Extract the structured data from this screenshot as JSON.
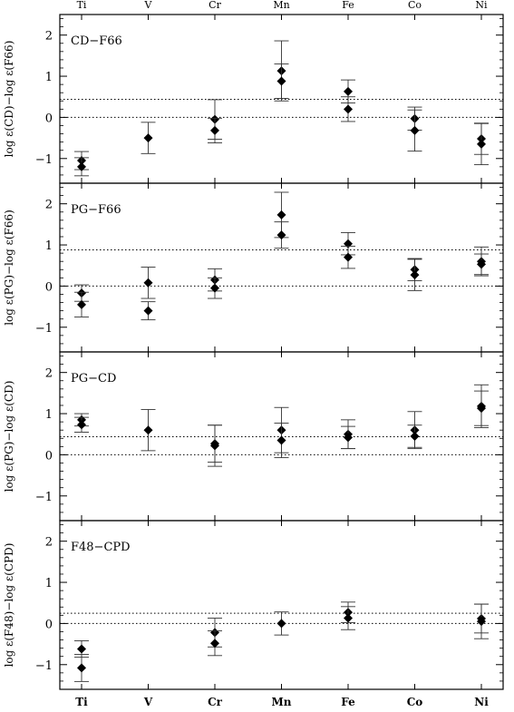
{
  "chart_data": {
    "type": "scatter",
    "categories": [
      "Ti",
      "V",
      "Cr",
      "Mn",
      "Fe",
      "Co",
      "Ni"
    ],
    "top_category_labels": [
      "Ti",
      "V",
      "Cr",
      "Mn",
      "Fe",
      "Co",
      "Ni"
    ],
    "bottom_category_labels": [
      "Ti",
      "V",
      "Cr",
      "Mn",
      "Fe",
      "Co",
      "Ni"
    ],
    "ylim": [
      -1.6,
      2.5
    ],
    "yticks": [
      2,
      1,
      0,
      -1
    ],
    "ytick_labels": [
      "2",
      "1",
      "0",
      "−1"
    ],
    "grid": false,
    "panels": [
      {
        "label": "CD−F66",
        "ylabel": "log ε(CD)−log ε(F66)",
        "reference_lines": [
          0,
          0.44
        ],
        "points": [
          {
            "element": "Ti",
            "y": -1.05,
            "err": 0.22
          },
          {
            "element": "Ti",
            "y": -1.2,
            "err": 0.22
          },
          {
            "element": "V",
            "y": -0.5,
            "err": 0.38
          },
          {
            "element": "Cr",
            "y": -0.05,
            "err": 0.48
          },
          {
            "element": "Cr",
            "y": -0.32,
            "err": 0.3
          },
          {
            "element": "Mn",
            "y": 1.13,
            "err": 0.73
          },
          {
            "element": "Mn",
            "y": 0.88,
            "err": 0.42
          },
          {
            "element": "Fe",
            "y": 0.63,
            "err": 0.28
          },
          {
            "element": "Fe",
            "y": 0.2,
            "err": 0.3
          },
          {
            "element": "Co",
            "y": -0.03,
            "err": 0.28
          },
          {
            "element": "Co",
            "y": -0.32,
            "err": 0.5
          },
          {
            "element": "Ni",
            "y": -0.52,
            "err": 0.38
          },
          {
            "element": "Ni",
            "y": -0.65,
            "err": 0.5
          }
        ]
      },
      {
        "label": "PG−F66",
        "ylabel": "log ε(PG)−log ε(F66)",
        "reference_lines": [
          0,
          0.88
        ],
        "points": [
          {
            "element": "Ti",
            "y": -0.17,
            "err": 0.2
          },
          {
            "element": "Ti",
            "y": -0.45,
            "err": 0.3
          },
          {
            "element": "V",
            "y": 0.08,
            "err": 0.38
          },
          {
            "element": "V",
            "y": -0.6,
            "err": 0.22
          },
          {
            "element": "Cr",
            "y": 0.15,
            "err": 0.27
          },
          {
            "element": "Cr",
            "y": -0.05,
            "err": 0.25
          },
          {
            "element": "Mn",
            "y": 1.73,
            "err": 0.55
          },
          {
            "element": "Mn",
            "y": 1.24,
            "err": 0.32
          },
          {
            "element": "Fe",
            "y": 1.03,
            "err": 0.27
          },
          {
            "element": "Fe",
            "y": 0.7,
            "err": 0.27
          },
          {
            "element": "Co",
            "y": 0.4,
            "err": 0.27
          },
          {
            "element": "Co",
            "y": 0.27,
            "err": 0.38
          },
          {
            "element": "Ni",
            "y": 0.6,
            "err": 0.35
          },
          {
            "element": "Ni",
            "y": 0.53,
            "err": 0.25
          }
        ]
      },
      {
        "label": "PG−CD",
        "ylabel": "log ε(PG)−log ε(CD)",
        "reference_lines": [
          0,
          0.44
        ],
        "points": [
          {
            "element": "Ti",
            "y": 0.85,
            "err": 0.15
          },
          {
            "element": "Ti",
            "y": 0.73,
            "err": 0.18
          },
          {
            "element": "V",
            "y": 0.6,
            "err": 0.5
          },
          {
            "element": "Cr",
            "y": 0.27,
            "err": 0.45
          },
          {
            "element": "Cr",
            "y": 0.22,
            "err": 0.5
          },
          {
            "element": "Mn",
            "y": 0.6,
            "err": 0.55
          },
          {
            "element": "Mn",
            "y": 0.35,
            "err": 0.42
          },
          {
            "element": "Fe",
            "y": 0.5,
            "err": 0.35
          },
          {
            "element": "Fe",
            "y": 0.42,
            "err": 0.27
          },
          {
            "element": "Co",
            "y": 0.6,
            "err": 0.45
          },
          {
            "element": "Co",
            "y": 0.45,
            "err": 0.27
          },
          {
            "element": "Ni",
            "y": 1.18,
            "err": 0.52
          },
          {
            "element": "Ni",
            "y": 1.13,
            "err": 0.42
          }
        ]
      },
      {
        "label": "F48−CPD",
        "ylabel": "log ε(F48)−log ε(CPD)",
        "reference_lines": [
          0,
          0.25
        ],
        "points": [
          {
            "element": "Ti",
            "y": -0.62,
            "err": 0.2
          },
          {
            "element": "Ti",
            "y": -1.08,
            "err": 0.33
          },
          {
            "element": "Cr",
            "y": -0.22,
            "err": 0.35
          },
          {
            "element": "Cr",
            "y": -0.48,
            "err": 0.3
          },
          {
            "element": "Mn",
            "y": 0.0,
            "err": 0.28
          },
          {
            "element": "Fe",
            "y": 0.27,
            "err": 0.25
          },
          {
            "element": "Fe",
            "y": 0.13,
            "err": 0.28
          },
          {
            "element": "Ni",
            "y": 0.12,
            "err": 0.35
          },
          {
            "element": "Ni",
            "y": 0.05,
            "err": 0.42
          }
        ]
      }
    ]
  }
}
